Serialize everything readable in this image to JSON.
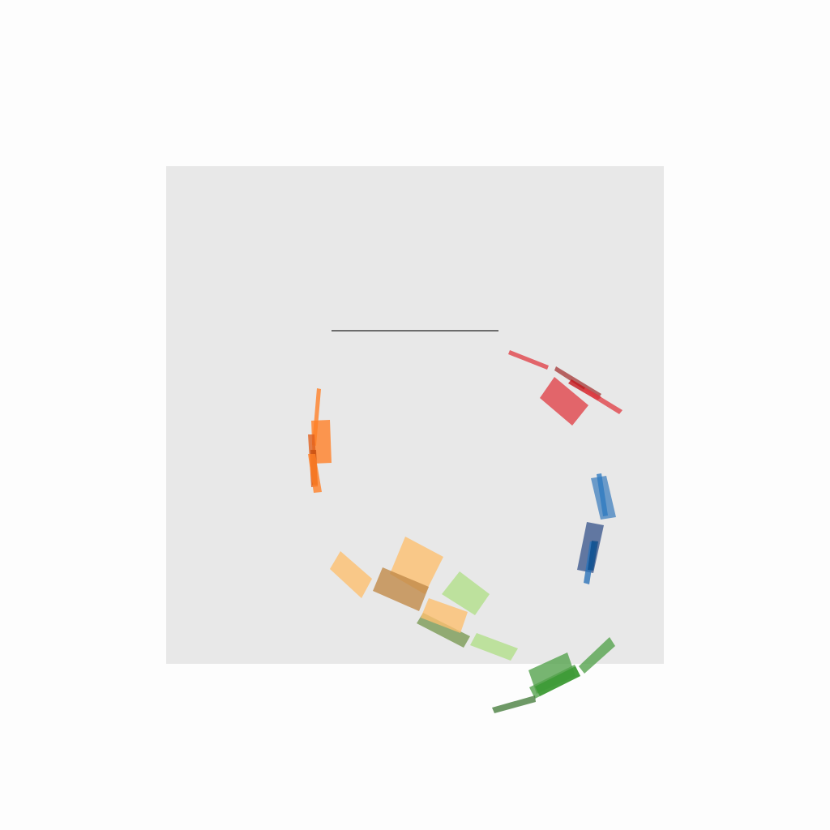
{
  "colors": {
    "page_background": "#fdfdfd",
    "panel_background": "#e8e8e8",
    "baseline_stroke": "#222222",
    "segment_opacity": 0.8
  },
  "groups": [
    {
      "name": "red",
      "segments": [
        {
          "color": "#e0434a"
        },
        {
          "color": "#a8403e"
        },
        {
          "color": "#c4161c"
        },
        {
          "color": "#e0434a"
        },
        {
          "color": "#e0434a"
        }
      ]
    },
    {
      "name": "blue",
      "segments": [
        {
          "color": "#4a86c0"
        },
        {
          "color": "#2f7ac0"
        },
        {
          "color": "#3f5a8e"
        },
        {
          "color": "#2a72b8"
        },
        {
          "color": "#0e4d8c"
        }
      ]
    },
    {
      "name": "green",
      "segments": [
        {
          "color": "#55a34e"
        },
        {
          "color": "#55a34e"
        },
        {
          "color": "#3a9a32"
        },
        {
          "color": "#4a7f40"
        },
        {
          "color": "#55a34e"
        }
      ]
    },
    {
      "name": "light-green",
      "segments": [
        {
          "color": "#b2df8a"
        },
        {
          "color": "#b2df8a"
        }
      ]
    },
    {
      "name": "olive",
      "segments": [
        {
          "color": "#7a9a55"
        }
      ]
    },
    {
      "name": "light-orange",
      "segments": [
        {
          "color": "#fdbf6f"
        },
        {
          "color": "#fdbf6f"
        },
        {
          "color": "#fdbf6f"
        },
        {
          "color": "#c08a48"
        }
      ]
    },
    {
      "name": "orange",
      "segments": [
        {
          "color": "#ff7f27"
        },
        {
          "color": "#ff7f27"
        },
        {
          "color": "#e0601e"
        },
        {
          "color": "#c85010"
        },
        {
          "color": "#ff7f27"
        }
      ]
    }
  ]
}
